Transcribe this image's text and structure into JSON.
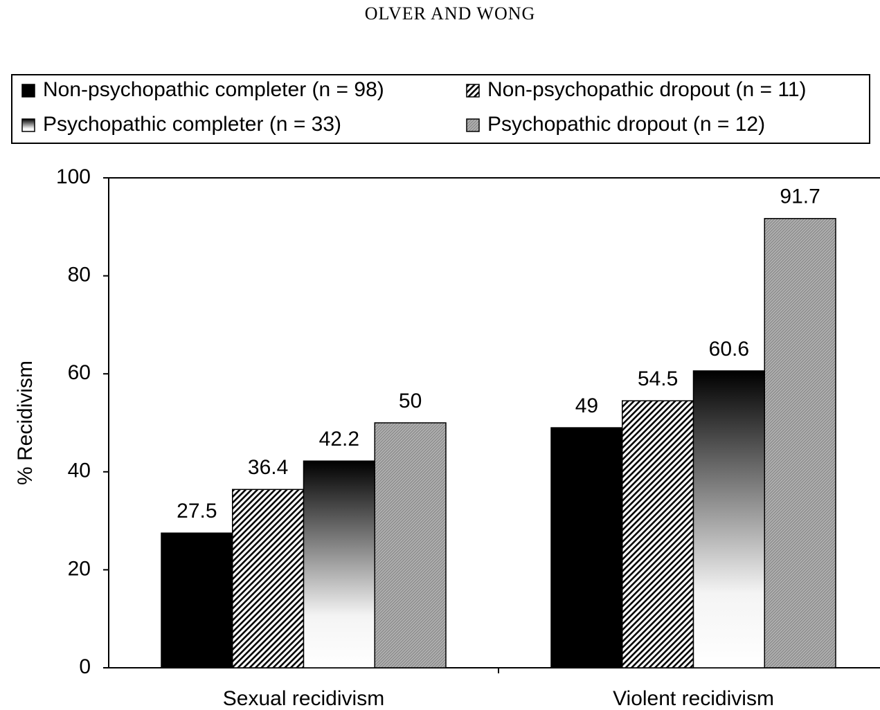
{
  "header": "OLVER AND WONG",
  "chart_data": {
    "type": "bar",
    "y_label": "% Recidivism",
    "categories": [
      "Sexual recidivism",
      "Violent recidivism"
    ],
    "series": [
      {
        "name": "Non-psychopathic completer (n = 98)",
        "color": "#000000",
        "fill": "solid",
        "values": [
          27.5,
          49
        ]
      },
      {
        "name": "Non-psychopathic dropout (n = 11)",
        "color": "#000000",
        "fill": "hatch",
        "values": [
          36.4,
          54.5
        ]
      },
      {
        "name": "Psychopathic completer (n = 33)",
        "color": "#000000",
        "fill": "gradient",
        "values": [
          42.2,
          60.6
        ]
      },
      {
        "name": "Psychopathic dropout (n = 12)",
        "color": "#8c8c8c",
        "fill": "fine-hatch",
        "values": [
          50,
          91.7
        ]
      }
    ],
    "ylim": [
      0,
      100
    ],
    "yticks": [
      0,
      20,
      40,
      60,
      80,
      100
    ],
    "grid": false,
    "legend": "top"
  }
}
